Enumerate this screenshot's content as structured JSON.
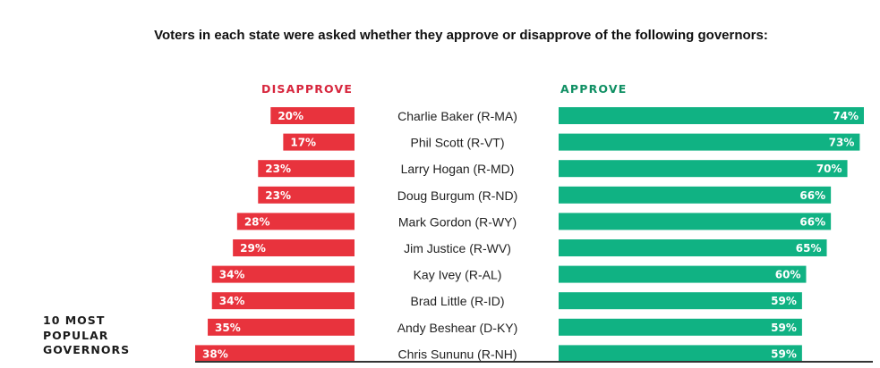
{
  "title": "Voters in each state were asked whether they approve or disapprove of the following governors:",
  "headers": {
    "disapprove": "DISAPPROVE",
    "approve": "APPROVE"
  },
  "side_label": {
    "line1": "10 MOST",
    "line2": "POPULAR",
    "line3": "GOVERNORS"
  },
  "colors": {
    "disapprove": "#e8333d",
    "approve": "#10b283",
    "disapprove_text": "#d7263d",
    "approve_text": "#0f8f63"
  },
  "chart_data": {
    "type": "bar",
    "orientation": "horizontal-diverging",
    "categories": [
      "Charlie Baker (R-MA)",
      "Phil Scott (R-VT)",
      "Larry Hogan (R-MD)",
      "Doug Burgum (R-ND)",
      "Mark Gordon (R-WY)",
      "Jim Justice (R-WV)",
      "Kay Ivey (R-AL)",
      "Brad Little (R-ID)",
      "Andy Beshear (D-KY)",
      "Chris Sununu (R-NH)"
    ],
    "series": [
      {
        "name": "DISAPPROVE",
        "values": [
          20,
          17,
          23,
          23,
          28,
          29,
          34,
          34,
          35,
          38
        ],
        "labels": [
          "20%",
          "17%",
          "23%",
          "23%",
          "28%",
          "29%",
          "34%",
          "34%",
          "35%",
          "38%"
        ]
      },
      {
        "name": "APPROVE",
        "values": [
          74,
          73,
          70,
          66,
          66,
          65,
          60,
          59,
          59,
          59
        ],
        "labels": [
          "74%",
          "73%",
          "70%",
          "66%",
          "66%",
          "65%",
          "60%",
          "59%",
          "59%",
          "59%"
        ]
      }
    ],
    "legend": "top",
    "grid": false
  }
}
